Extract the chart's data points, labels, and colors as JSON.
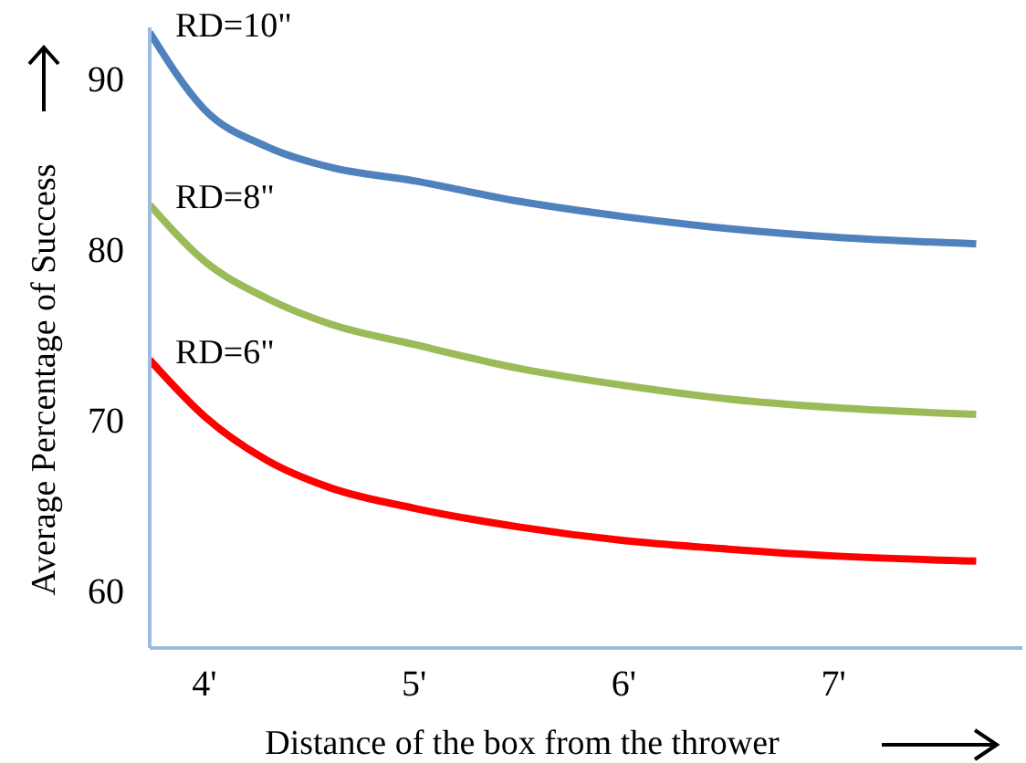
{
  "chart_data": {
    "type": "line",
    "xlabel": "Distance of the box from the thrower",
    "ylabel": "Average Percentage of Success",
    "xlim": [
      3.74,
      7.9
    ],
    "ylim": [
      56.6,
      93
    ],
    "xticks": [
      {
        "value": 4,
        "label": "4'"
      },
      {
        "value": 5,
        "label": "5'"
      },
      {
        "value": 6,
        "label": "6'"
      },
      {
        "value": 7,
        "label": "7'"
      }
    ],
    "yticks": [
      60,
      70,
      80,
      90
    ],
    "x": [
      3.74,
      4.0,
      4.3,
      4.6,
      5.0,
      5.5,
      6.0,
      6.5,
      7.0,
      7.68
    ],
    "series": [
      {
        "name": "RD=10\"",
        "color": "#4f81bd",
        "values": [
          92.7,
          88.2,
          86.0,
          84.8,
          84.0,
          82.8,
          81.9,
          81.2,
          80.7,
          80.3
        ]
      },
      {
        "name": "RD=8\"",
        "color": "#9bbb59",
        "values": [
          82.6,
          79.3,
          77.1,
          75.6,
          74.4,
          73.0,
          72.0,
          71.2,
          70.7,
          70.3
        ]
      },
      {
        "name": "RD=6\"",
        "color": "#ff0000",
        "values": [
          73.5,
          70.2,
          67.6,
          66.0,
          64.8,
          63.7,
          62.9,
          62.4,
          62.0,
          61.7
        ]
      }
    ],
    "grid": false,
    "legend": false,
    "marker": "none",
    "line_style": "solid"
  }
}
